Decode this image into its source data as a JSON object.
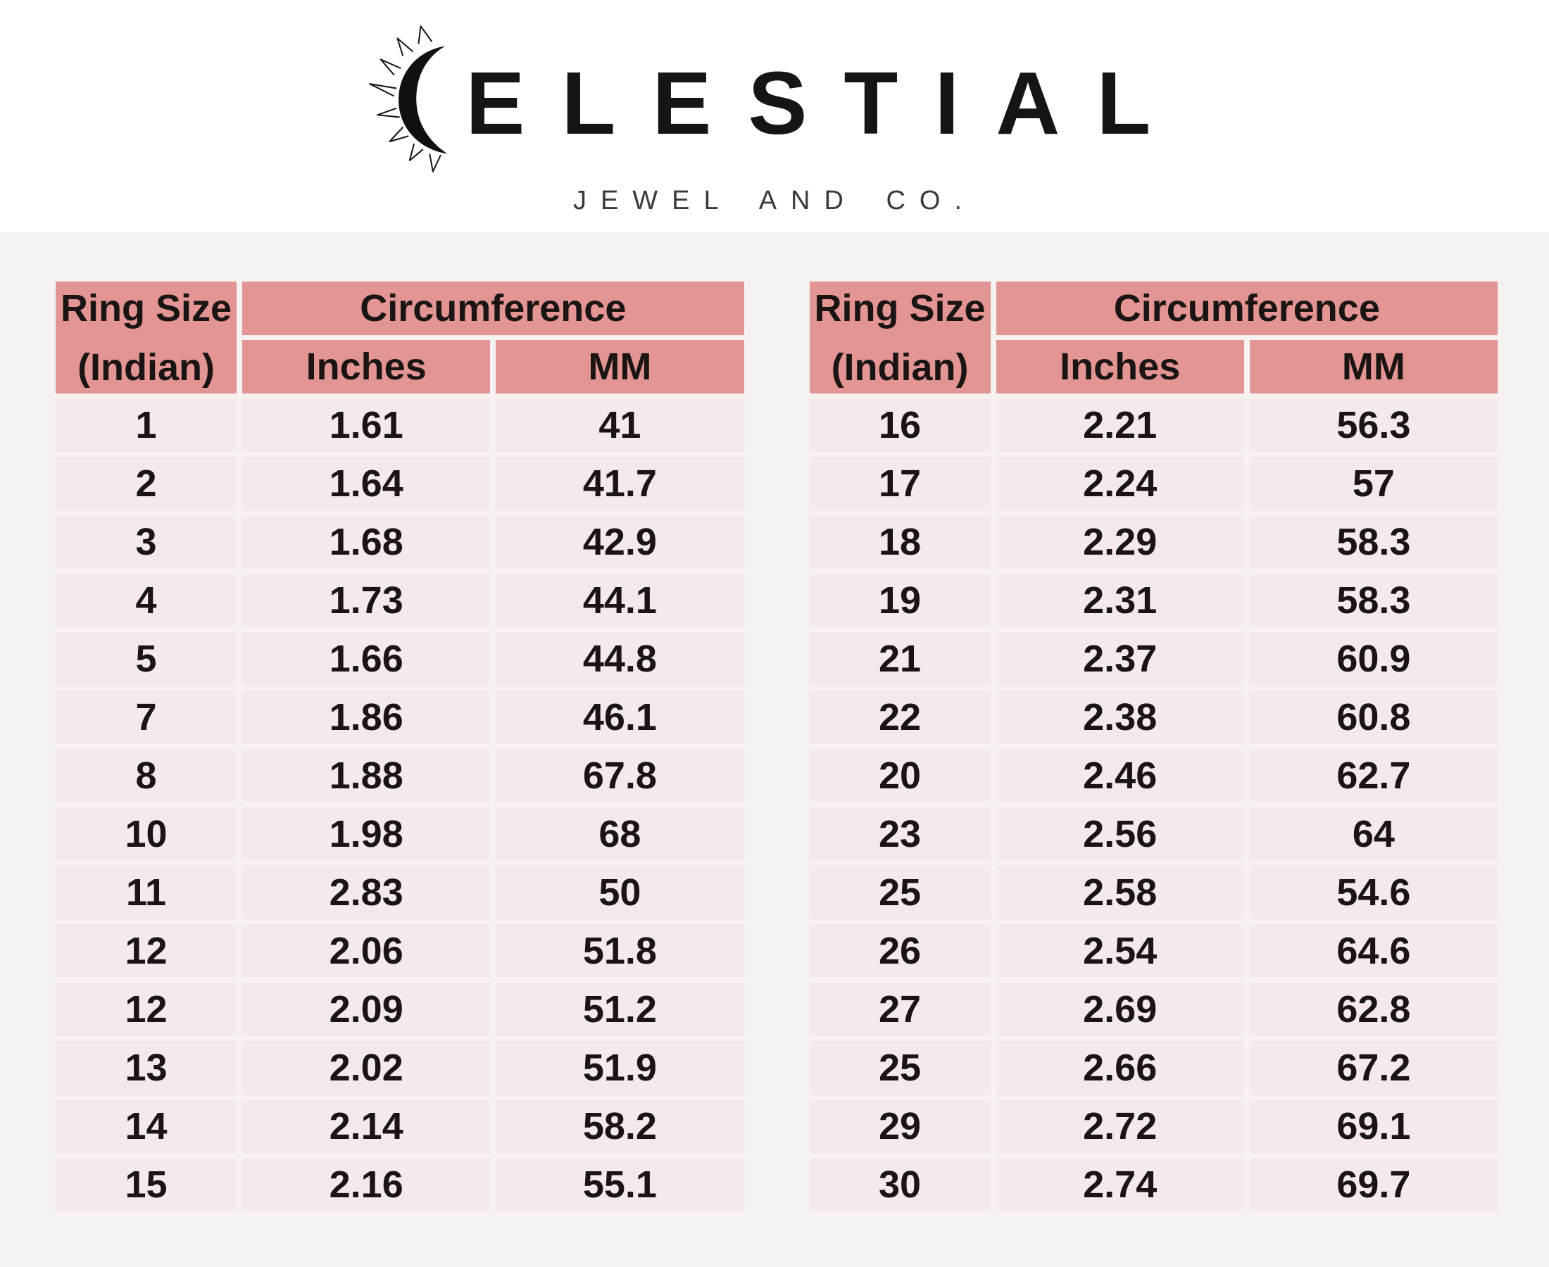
{
  "brand": {
    "name": "CELESTIAL",
    "wordmark_rest": "ELESTIAL",
    "subtitle": "JEWEL AND CO.",
    "logo_icon": "sun-crescent-icon"
  },
  "colors": {
    "header_cell_bg": "#e29592",
    "data_cell_bg": "#f5eae9",
    "separator": "#fdfcfc",
    "page_bg": "#f5f2f1",
    "top_band_bg": "#ffffff",
    "text": "#1b1414"
  },
  "tables": [
    {
      "header": {
        "ring_size_line1": "Ring Size",
        "ring_size_line2": "(Indian)",
        "circumference": "Circumference",
        "inches": "Inches",
        "mm": "MM"
      },
      "rows": [
        [
          "1",
          "1.61",
          "41"
        ],
        [
          "2",
          "1.64",
          "41.7"
        ],
        [
          "3",
          "1.68",
          "42.9"
        ],
        [
          "4",
          "1.73",
          "44.1"
        ],
        [
          "5",
          "1.66",
          "44.8"
        ],
        [
          "7",
          "1.86",
          "46.1"
        ],
        [
          "8",
          "1.88",
          "67.8"
        ],
        [
          "10",
          "1.98",
          "68"
        ],
        [
          "11",
          "2.83",
          "50"
        ],
        [
          "12",
          "2.06",
          "51.8"
        ],
        [
          "12",
          "2.09",
          "51.2"
        ],
        [
          "13",
          "2.02",
          "51.9"
        ],
        [
          "14",
          "2.14",
          "58.2"
        ],
        [
          "15",
          "2.16",
          "55.1"
        ]
      ]
    },
    {
      "header": {
        "ring_size_line1": "Ring Size",
        "ring_size_line2": "(Indian)",
        "circumference": "Circumference",
        "inches": "Inches",
        "mm": "MM"
      },
      "rows": [
        [
          "16",
          "2.21",
          "56.3"
        ],
        [
          "17",
          "2.24",
          "57"
        ],
        [
          "18",
          "2.29",
          "58.3"
        ],
        [
          "19",
          "2.31",
          "58.3"
        ],
        [
          "21",
          "2.37",
          "60.9"
        ],
        [
          "22",
          "2.38",
          "60.8"
        ],
        [
          "20",
          "2.46",
          "62.7"
        ],
        [
          "23",
          "2.56",
          "64"
        ],
        [
          "25",
          "2.58",
          "54.6"
        ],
        [
          "26",
          "2.54",
          "64.6"
        ],
        [
          "27",
          "2.69",
          "62.8"
        ],
        [
          "25",
          "2.66",
          "67.2"
        ],
        [
          "29",
          "2.72",
          "69.1"
        ],
        [
          "30",
          "2.74",
          "69.7"
        ]
      ]
    }
  ],
  "chart_data": [
    {
      "type": "table",
      "title": "Ring Size (Indian) to Circumference — left table",
      "columns": [
        "Ring Size (Indian)",
        "Circumference Inches",
        "Circumference MM"
      ],
      "rows": [
        [
          1,
          1.61,
          41
        ],
        [
          2,
          1.64,
          41.7
        ],
        [
          3,
          1.68,
          42.9
        ],
        [
          4,
          1.73,
          44.1
        ],
        [
          5,
          1.66,
          44.8
        ],
        [
          7,
          1.86,
          46.1
        ],
        [
          8,
          1.88,
          67.8
        ],
        [
          10,
          1.98,
          68
        ],
        [
          11,
          2.83,
          50
        ],
        [
          12,
          2.06,
          51.8
        ],
        [
          12,
          2.09,
          51.2
        ],
        [
          13,
          2.02,
          51.9
        ],
        [
          14,
          2.14,
          58.2
        ],
        [
          15,
          2.16,
          55.1
        ]
      ]
    },
    {
      "type": "table",
      "title": "Ring Size (Indian) to Circumference — right table",
      "columns": [
        "Ring Size (Indian)",
        "Circumference Inches",
        "Circumference MM"
      ],
      "rows": [
        [
          16,
          2.21,
          56.3
        ],
        [
          17,
          2.24,
          57
        ],
        [
          18,
          2.29,
          58.3
        ],
        [
          19,
          2.31,
          58.3
        ],
        [
          21,
          2.37,
          60.9
        ],
        [
          22,
          2.38,
          60.8
        ],
        [
          20,
          2.46,
          62.7
        ],
        [
          23,
          2.56,
          64
        ],
        [
          25,
          2.58,
          54.6
        ],
        [
          26,
          2.54,
          64.6
        ],
        [
          27,
          2.69,
          62.8
        ],
        [
          25,
          2.66,
          67.2
        ],
        [
          29,
          2.72,
          69.1
        ],
        [
          30,
          2.74,
          69.7
        ]
      ]
    }
  ]
}
